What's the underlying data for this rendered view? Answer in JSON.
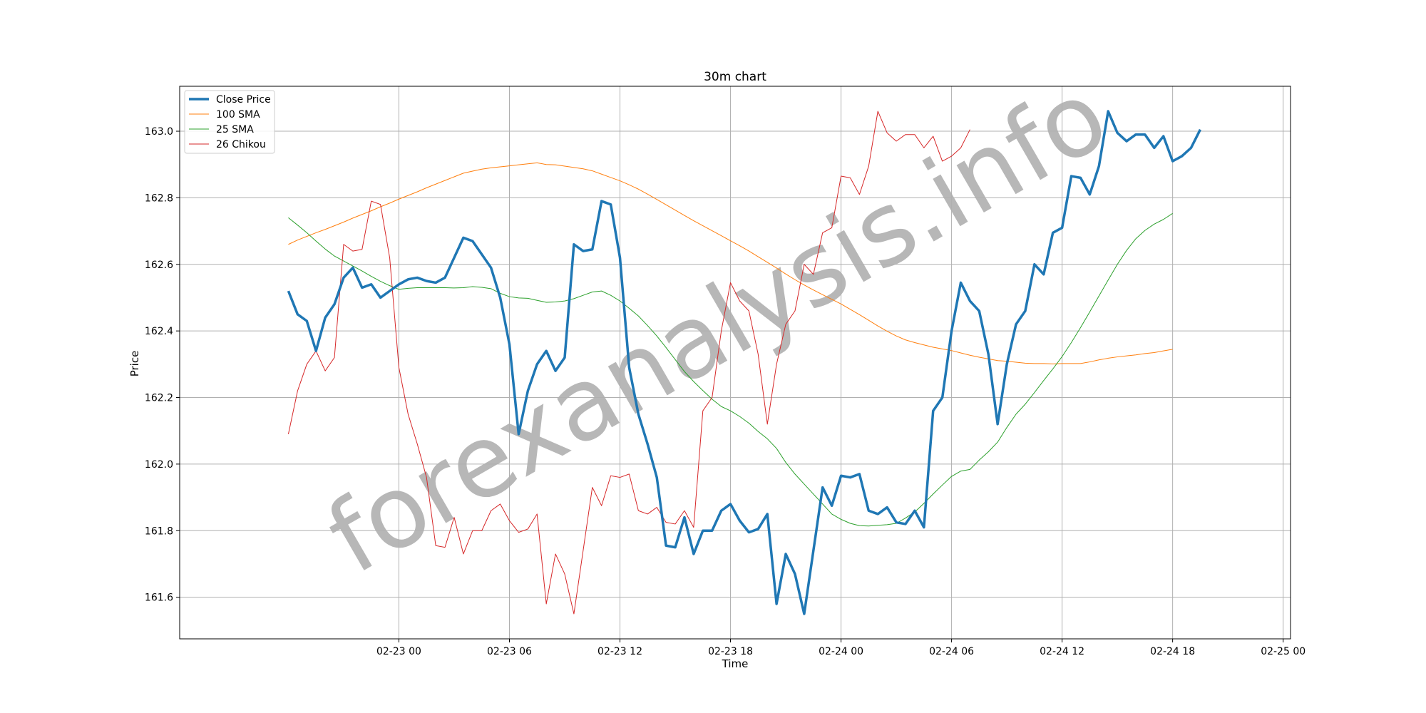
{
  "chart_data": {
    "type": "line",
    "title": "30m chart",
    "xlabel": "Time",
    "ylabel": "Price",
    "watermark": "forexanalysis.info",
    "grid": true,
    "legend_position": "top-left",
    "x_start": "2024-02-22 18:00",
    "x_interval_minutes": 30,
    "xlim": [
      "2024-02-22 12:06",
      "2024-02-25 00:24"
    ],
    "ylim": [
      161.475,
      163.135
    ],
    "x_ticks": [
      {
        "label": "02-23 00",
        "value": "2024-02-23 00:00"
      },
      {
        "label": "02-23 06",
        "value": "2024-02-23 06:00"
      },
      {
        "label": "02-23 12",
        "value": "2024-02-23 12:00"
      },
      {
        "label": "02-23 18",
        "value": "2024-02-23 18:00"
      },
      {
        "label": "02-24 00",
        "value": "2024-02-24 00:00"
      },
      {
        "label": "02-24 06",
        "value": "2024-02-24 06:00"
      },
      {
        "label": "02-24 12",
        "value": "2024-02-24 12:00"
      },
      {
        "label": "02-24 18",
        "value": "2024-02-24 18:00"
      },
      {
        "label": "02-25 00",
        "value": "2024-02-25 00:00"
      }
    ],
    "y_ticks": [
      {
        "label": "161.6",
        "value": 161.6
      },
      {
        "label": "161.8",
        "value": 161.8
      },
      {
        "label": "162.0",
        "value": 162.0
      },
      {
        "label": "162.2",
        "value": 162.2
      },
      {
        "label": "162.4",
        "value": 162.4
      },
      {
        "label": "162.6",
        "value": 162.6
      },
      {
        "label": "162.8",
        "value": 162.8
      },
      {
        "label": "163.0",
        "value": 163.0
      }
    ],
    "series": [
      {
        "name": "Close Price",
        "color": "#1f77b4",
        "values": [
          162.52,
          162.45,
          162.43,
          162.34,
          162.44,
          162.48,
          162.56,
          162.59,
          162.53,
          162.54,
          162.5,
          162.52,
          162.54,
          162.555,
          162.56,
          162.55,
          162.545,
          162.56,
          162.62,
          162.68,
          162.67,
          162.63,
          162.59,
          162.5,
          162.36,
          162.09,
          162.22,
          162.3,
          162.34,
          162.28,
          162.32,
          162.66,
          162.64,
          162.645,
          162.79,
          162.78,
          162.62,
          162.29,
          162.15,
          162.06,
          161.96,
          161.755,
          161.75,
          161.84,
          161.73,
          161.8,
          161.8,
          161.86,
          161.88,
          161.83,
          161.795,
          161.805,
          161.85,
          161.58,
          161.73,
          161.67,
          161.55,
          161.74,
          161.93,
          161.875,
          161.965,
          161.96,
          161.97,
          161.86,
          161.85,
          161.87,
          161.825,
          161.82,
          161.86,
          161.81,
          162.16,
          162.2,
          162.4,
          162.545,
          162.49,
          162.46,
          162.33,
          162.12,
          162.3,
          162.42,
          162.46,
          162.6,
          162.57,
          162.695,
          162.71,
          162.865,
          162.86,
          162.81,
          162.895,
          163.06,
          162.995,
          162.97,
          162.99,
          162.99,
          162.95,
          162.985,
          162.91,
          162.925,
          162.95,
          163.005
        ]
      },
      {
        "name": "100 SMA",
        "color": "#ff7f0e",
        "values": [
          162.66,
          162.673,
          162.684,
          162.695,
          162.705,
          162.716,
          162.727,
          162.739,
          162.75,
          162.761,
          162.773,
          162.784,
          162.796,
          162.807,
          162.818,
          162.83,
          162.841,
          162.852,
          162.863,
          162.874,
          162.88,
          162.886,
          162.89,
          162.893,
          162.896,
          162.899,
          162.902,
          162.905,
          162.9,
          162.899,
          162.895,
          162.891,
          162.887,
          162.881,
          162.871,
          162.861,
          162.851,
          162.839,
          162.826,
          162.811,
          162.795,
          162.779,
          162.763,
          162.747,
          162.731,
          162.716,
          162.701,
          162.686,
          162.671,
          162.656,
          162.64,
          162.623,
          162.606,
          162.589,
          162.571,
          162.554,
          162.538,
          162.523,
          162.509,
          162.495,
          162.481,
          162.465,
          162.449,
          162.432,
          162.415,
          162.399,
          162.385,
          162.373,
          162.365,
          162.358,
          162.351,
          162.346,
          162.341,
          162.334,
          162.327,
          162.321,
          162.316,
          162.311,
          162.309,
          162.306,
          162.303,
          162.302,
          162.302,
          162.301,
          162.302,
          162.302,
          162.302,
          162.307,
          162.313,
          162.318,
          162.322,
          162.325,
          162.328,
          162.332,
          162.335,
          162.34,
          162.345
        ]
      },
      {
        "name": "25 SMA",
        "color": "#2ca02c",
        "values": [
          162.74,
          162.718,
          162.695,
          162.67,
          162.646,
          162.625,
          162.61,
          162.595,
          162.58,
          162.564,
          162.549,
          162.536,
          162.525,
          162.528,
          162.53,
          162.53,
          162.53,
          162.53,
          162.529,
          162.53,
          162.533,
          162.531,
          162.527,
          162.513,
          162.503,
          162.499,
          162.498,
          162.492,
          162.486,
          162.487,
          162.49,
          162.497,
          162.507,
          162.517,
          162.52,
          162.507,
          162.49,
          162.468,
          162.445,
          162.416,
          162.385,
          162.35,
          162.314,
          162.278,
          162.248,
          162.221,
          162.195,
          162.173,
          162.16,
          162.143,
          162.123,
          162.098,
          162.076,
          162.047,
          162.005,
          161.97,
          161.94,
          161.91,
          161.88,
          161.85,
          161.834,
          161.822,
          161.815,
          161.814,
          161.816,
          161.818,
          161.822,
          161.838,
          161.856,
          161.882,
          161.91,
          161.937,
          161.963,
          161.979,
          161.984,
          162.012,
          162.037,
          162.066,
          162.11,
          162.15,
          162.18,
          162.215,
          162.251,
          162.286,
          162.323,
          162.365,
          162.41,
          162.457,
          162.505,
          162.553,
          162.6,
          162.642,
          162.677,
          162.702,
          162.721,
          162.735,
          162.753
        ]
      },
      {
        "name": "26 Chikou",
        "color": "#d62728",
        "values": [
          162.09,
          162.22,
          162.3,
          162.34,
          162.28,
          162.32,
          162.66,
          162.64,
          162.645,
          162.79,
          162.78,
          162.62,
          162.29,
          162.15,
          162.06,
          161.96,
          161.755,
          161.75,
          161.84,
          161.73,
          161.8,
          161.8,
          161.86,
          161.88,
          161.83,
          161.795,
          161.805,
          161.85,
          161.58,
          161.73,
          161.67,
          161.55,
          161.74,
          161.93,
          161.875,
          161.965,
          161.96,
          161.97,
          161.86,
          161.85,
          161.87,
          161.825,
          161.82,
          161.86,
          161.81,
          162.16,
          162.2,
          162.4,
          162.545,
          162.49,
          162.46,
          162.33,
          162.12,
          162.3,
          162.42,
          162.46,
          162.6,
          162.57,
          162.695,
          162.71,
          162.865,
          162.86,
          162.81,
          162.895,
          163.06,
          162.995,
          162.97,
          162.99,
          162.99,
          162.95,
          162.985,
          162.91,
          162.925,
          162.95,
          163.005
        ]
      }
    ]
  }
}
